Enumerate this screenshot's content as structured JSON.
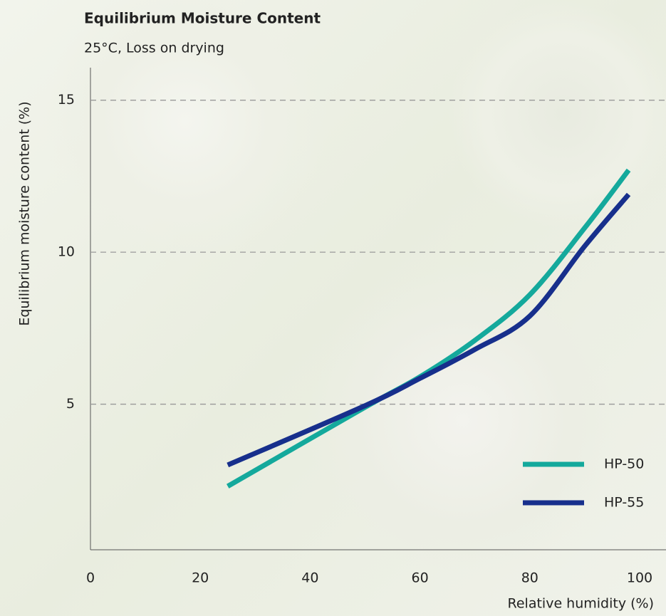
{
  "chart_data": {
    "type": "line",
    "title": "Equilibrium Moisture Content",
    "subtitle": "25°C, Loss on drying",
    "x_label": "Relative humidity (%)",
    "y_label": "Equilibrium moisture content (%)",
    "x": [
      25,
      50,
      60,
      70,
      80,
      90,
      98
    ],
    "series": [
      {
        "name": "HP-50",
        "color": "#14a99c",
        "values": [
          2.3,
          4.9,
          5.9,
          7.1,
          8.6,
          10.8,
          12.7
        ]
      },
      {
        "name": "HP-55",
        "color": "#172f8c",
        "values": [
          3.0,
          4.95,
          5.85,
          6.8,
          7.9,
          10.2,
          11.9
        ]
      }
    ],
    "xlim": [
      0,
      100
    ],
    "xticks": [
      0,
      20,
      40,
      60,
      80,
      100
    ],
    "ylim": [
      0,
      16
    ],
    "yticks": [
      5,
      10,
      15
    ],
    "grid": true,
    "legend": "lower right"
  }
}
